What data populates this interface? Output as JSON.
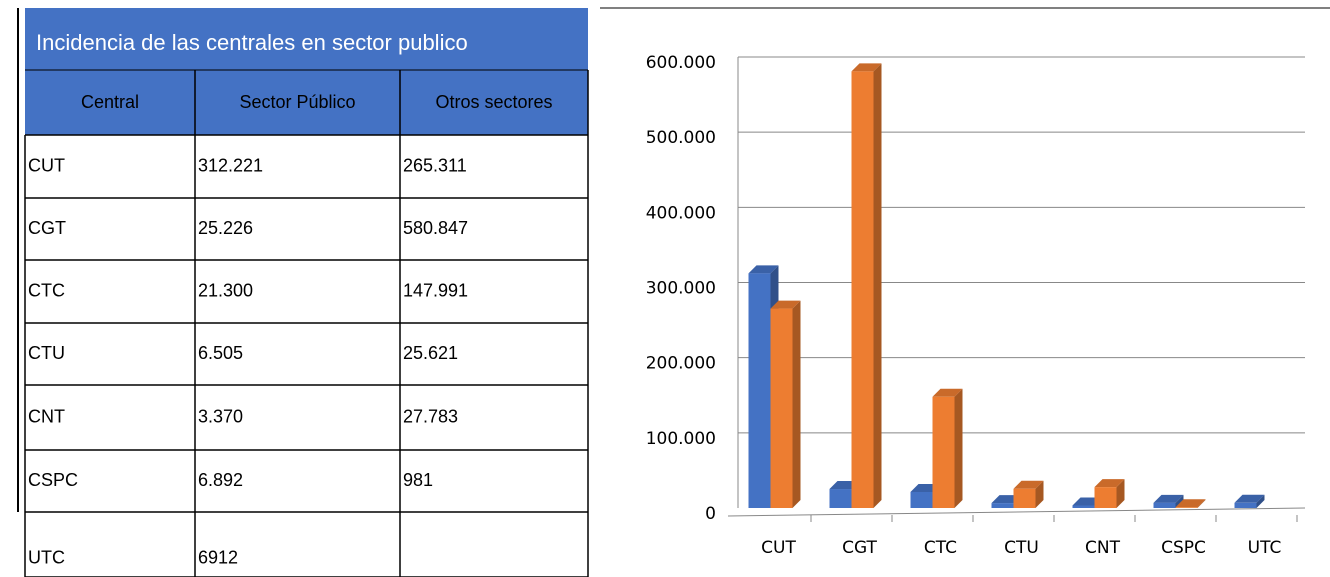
{
  "table": {
    "title": "Incidencia de las centrales en sector publico",
    "header": [
      "Central",
      "Sector Público",
      "Otros sectores"
    ],
    "rows": [
      [
        "CUT",
        "312.221",
        "265.311"
      ],
      [
        "CGT",
        "25.226",
        "580.847"
      ],
      [
        "CTC",
        "21.300",
        "147.991"
      ],
      [
        "CTU",
        "6.505",
        "25.621"
      ],
      [
        "CNT",
        "3.370",
        "27.783"
      ],
      [
        "CSPC",
        "6.892",
        "981"
      ],
      [
        "UTC",
        "6912"
      ]
    ]
  },
  "chart_data": {
    "type": "bar",
    "categories": [
      "CUT",
      "CGT",
      "CTC",
      "CTU",
      "CNT",
      "CSPC",
      "UTC"
    ],
    "series": [
      {
        "color": "#4472c4",
        "values": [
          312221,
          25226,
          21300,
          6505,
          3370,
          6892,
          6912
        ]
      },
      {
        "color": "#ed7d31",
        "values": [
          265311,
          580847,
          147991,
          25621,
          27783,
          981,
          null
        ]
      }
    ],
    "ylim": [
      0,
      600000
    ],
    "yticks": [
      0,
      {
        "value": 100000,
        "label": "100.000"
      },
      {
        "value": 200000,
        "label": "200.000"
      },
      {
        "value": 300000,
        "label": "300.000"
      },
      {
        "value": 400000,
        "label": "400.000"
      },
      {
        "value": 500000,
        "label": "500.000"
      },
      {
        "value": 600000,
        "label": "600.000"
      }
    ],
    "grid": true
  }
}
